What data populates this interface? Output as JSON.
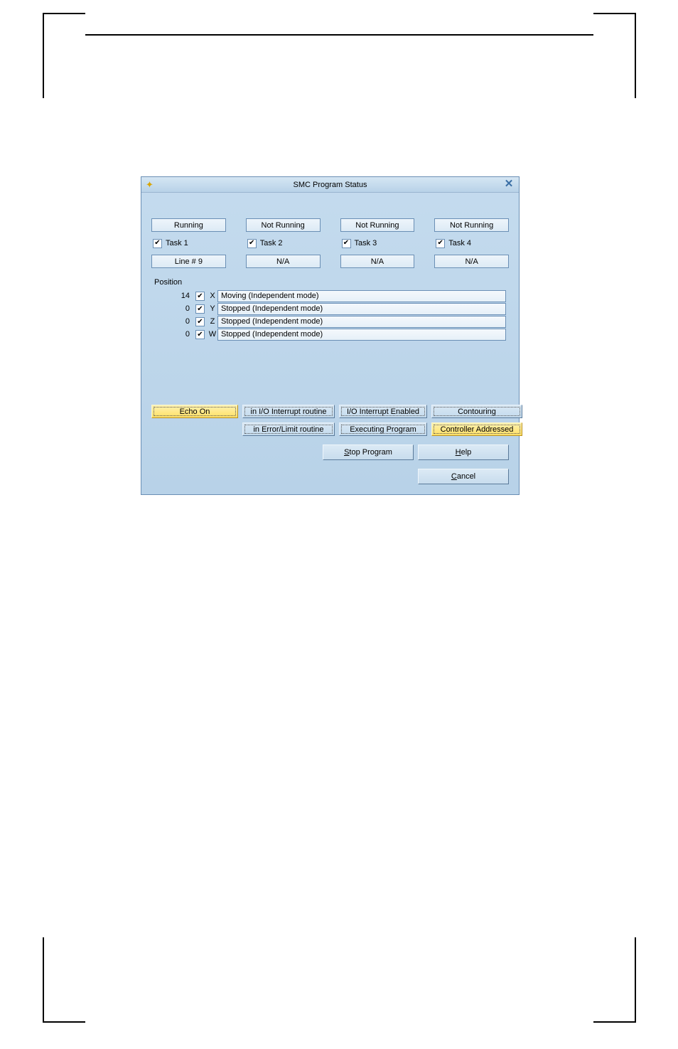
{
  "window": {
    "title": "SMC Program Status"
  },
  "tasks": [
    {
      "status": "Running",
      "checked": true,
      "label": "Task 1",
      "line": "Line # 9"
    },
    {
      "status": "Not Running",
      "checked": true,
      "label": "Task 2",
      "line": "N/A"
    },
    {
      "status": "Not Running",
      "checked": true,
      "label": "Task 3",
      "line": "N/A"
    },
    {
      "status": "Not Running",
      "checked": true,
      "label": "Task 4",
      "line": "N/A"
    }
  ],
  "position_label": "Position",
  "axes": [
    {
      "value": "14",
      "checked": true,
      "letter": "X",
      "status": "Moving (Independent mode)"
    },
    {
      "value": "0",
      "checked": true,
      "letter": "Y",
      "status": "Stopped (Independent mode)"
    },
    {
      "value": "0",
      "checked": true,
      "letter": "Z",
      "status": "Stopped (Independent mode)"
    },
    {
      "value": "0",
      "checked": true,
      "letter": "W",
      "status": "Stopped (Independent mode)"
    }
  ],
  "status_flags": {
    "echo_on": "Echo On",
    "in_io_interrupt": "in I/O Interrupt routine",
    "io_interrupt_enabled": "I/O Interrupt Enabled",
    "contouring": "Contouring",
    "in_error_limit": "in Error/Limit routine",
    "executing_program": "Executing Program",
    "controller_addressed": "Controller Addressed"
  },
  "buttons": {
    "stop_program_prefix": "S",
    "stop_program_rest": "top Program",
    "help_prefix": "H",
    "help_rest": "elp",
    "cancel_prefix": "C",
    "cancel_rest": "ancel"
  },
  "colors": {
    "dialog_bg_top": "#c4dbee",
    "dialog_bg_bottom": "#b8d2e8",
    "border": "#6a8fb5",
    "highlight_bg_top": "#fff2b0",
    "highlight_bg_bottom": "#ffe066",
    "field_bg_top": "#eef5fb",
    "field_bg_bottom": "#dceaf5"
  }
}
